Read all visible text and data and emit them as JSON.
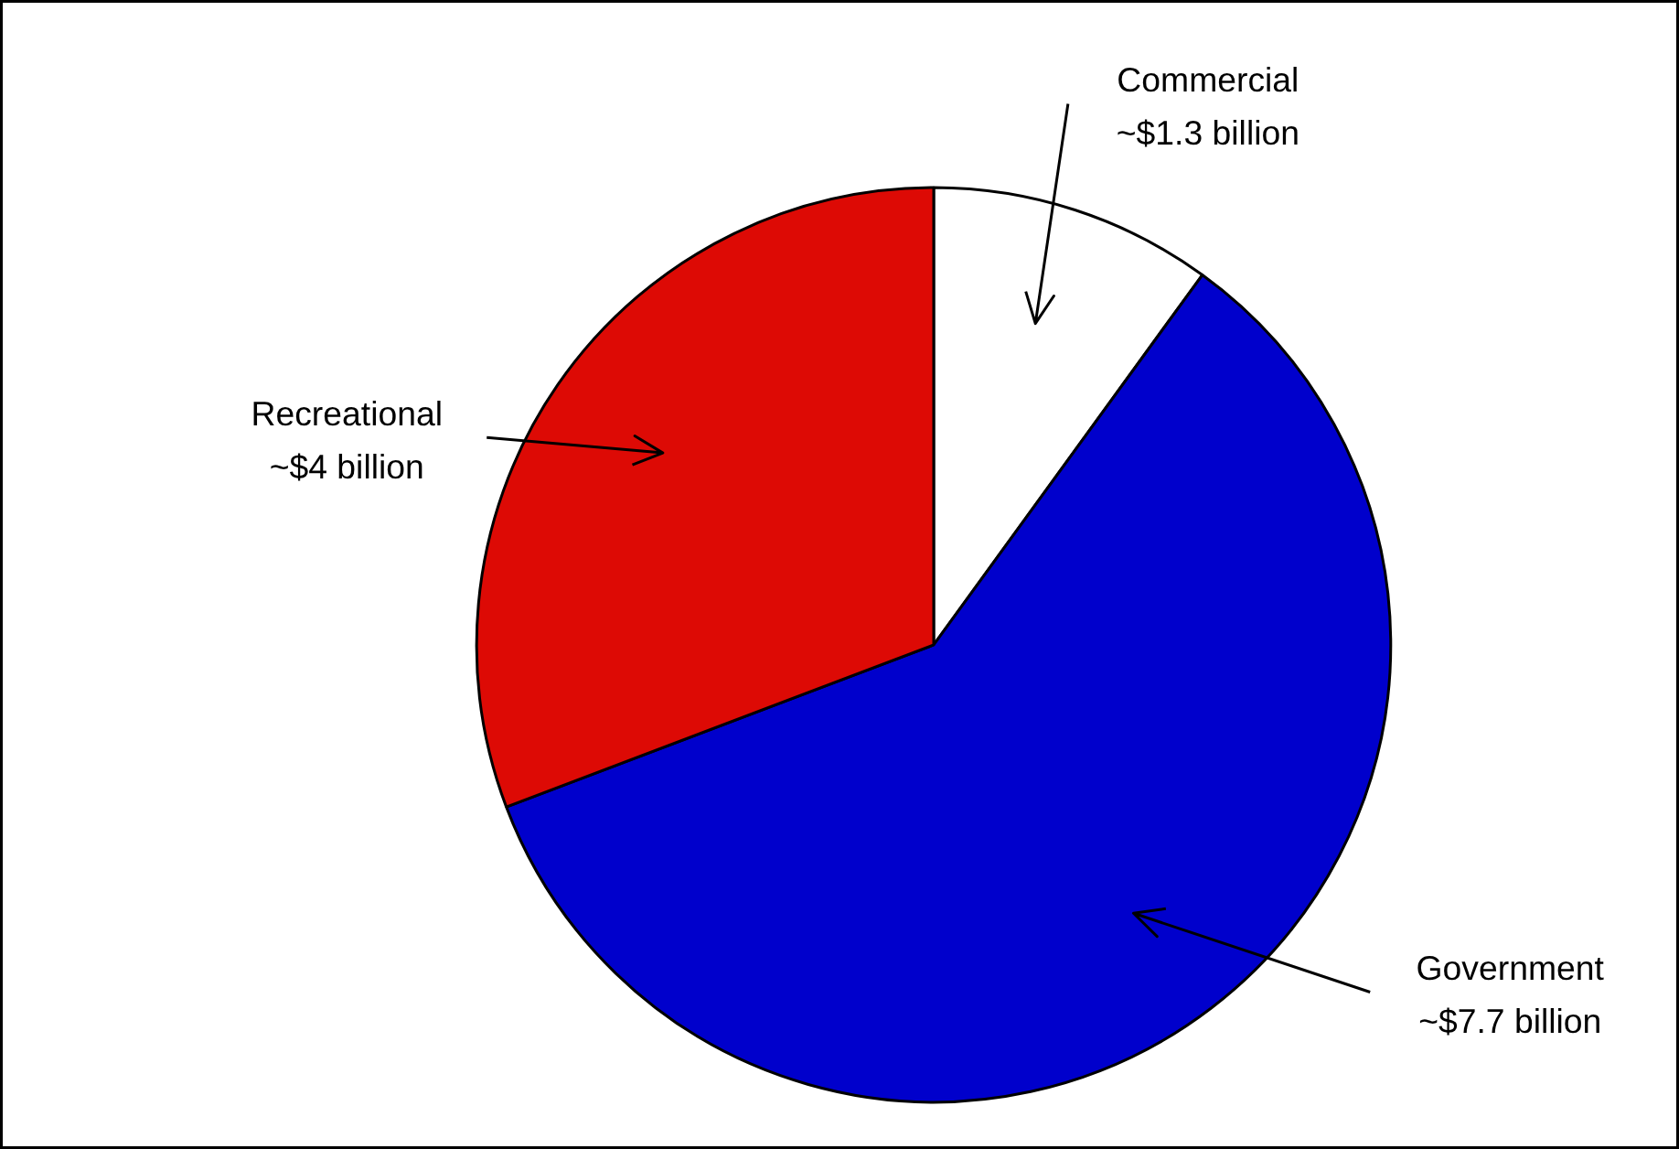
{
  "chart_data": {
    "type": "pie",
    "categories": [
      "Commercial",
      "Government",
      "Recreational"
    ],
    "values": [
      1.3,
      7.7,
      4
    ],
    "value_labels": [
      "~$1.3 billion",
      "~$7.7 billion",
      "~$4 billion"
    ],
    "colors": [
      "#ffffff",
      "#0000cc",
      "#dd0a05"
    ]
  }
}
